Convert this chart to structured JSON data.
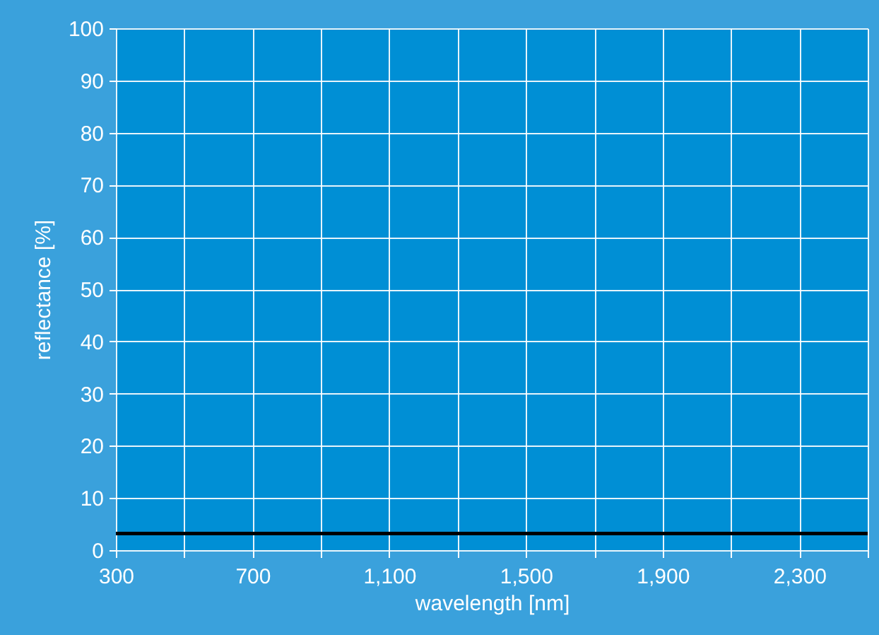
{
  "chart_data": {
    "type": "line",
    "xlabel": "wavelength [nm]",
    "ylabel": "reflectance [%]",
    "x": [
      300,
      2500
    ],
    "series": [
      {
        "color": "#000000",
        "values": [
          3.2,
          3.2
        ]
      }
    ],
    "xlim": [
      300,
      2500
    ],
    "ylim": [
      0,
      100
    ],
    "xticks": [
      300,
      {
        "value": 500,
        "label": null
      },
      700,
      {
        "value": 900,
        "label": null
      },
      {
        "value": 1100,
        "label": "1,100"
      },
      {
        "value": 1300,
        "label": null
      },
      {
        "value": 1500,
        "label": "1,500"
      },
      {
        "value": 1700,
        "label": null
      },
      {
        "value": 1900,
        "label": "1,900"
      },
      {
        "value": 2100,
        "label": null
      },
      {
        "value": 2300,
        "label": "2,300"
      },
      {
        "value": 2500,
        "label": null
      }
    ],
    "yticks": [
      0,
      10,
      20,
      30,
      40,
      50,
      60,
      70,
      80,
      90,
      100
    ],
    "grid": true,
    "marker": "none",
    "line_style": "solid"
  }
}
